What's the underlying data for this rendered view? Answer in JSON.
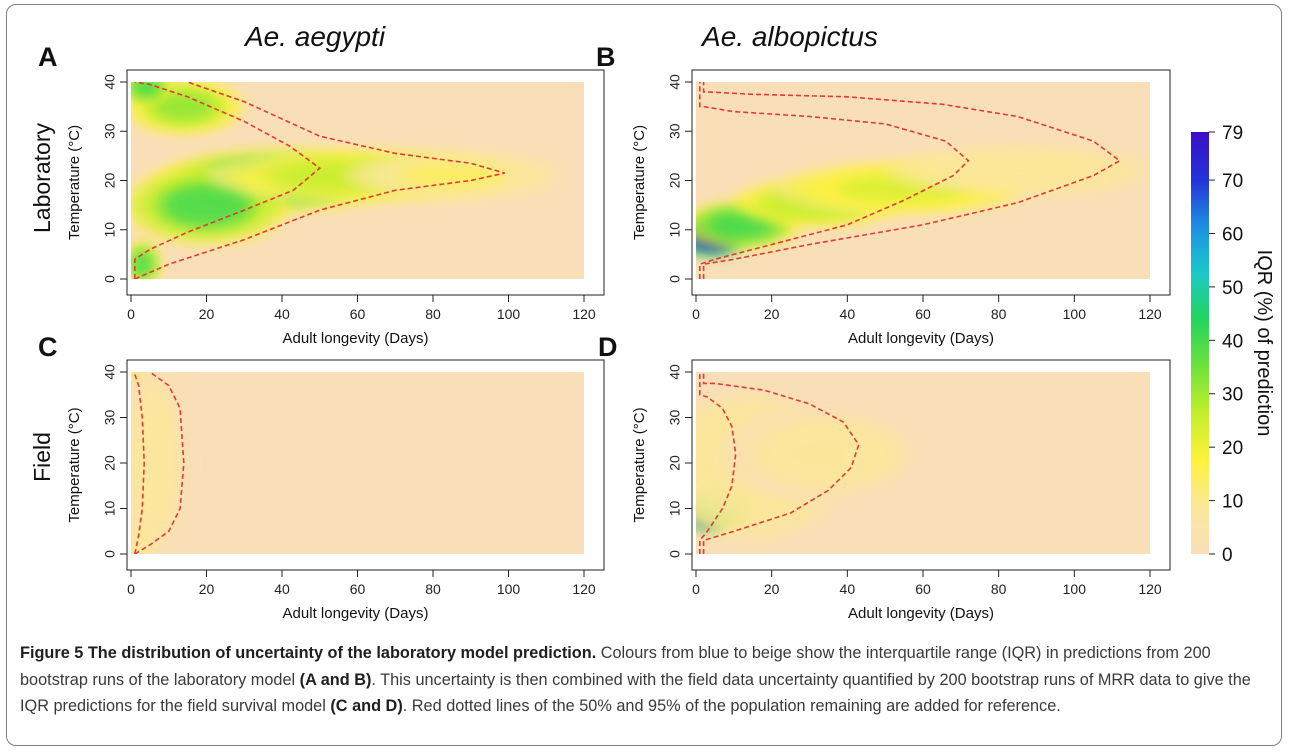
{
  "figure": {
    "column_titles": [
      "Ae. aegypti",
      "Ae. albopictus"
    ],
    "row_labels": [
      "Laboratory",
      "Field"
    ],
    "colorbar": {
      "label": "IQR (%) of prediction",
      "min": 0,
      "max": 79,
      "ticks": [
        79,
        70,
        60,
        50,
        40,
        30,
        20,
        10,
        0
      ],
      "colors": [
        "#f9dfb7",
        "#fbe79a",
        "#fef23c",
        "#c3ee2c",
        "#6ee23a",
        "#23d45c",
        "#1bc8c8",
        "#1c8fe2",
        "#2530d8",
        "#3a10c8"
      ]
    },
    "caption": {
      "title": "Figure 5 The distribution of uncertainty of the laboratory model prediction.",
      "part1": " Colours from blue to beige show the interquartile range (IQR) in predictions from 200 bootstrap runs of the laboratory model ",
      "ref1": "(A and B)",
      "part2": ". This uncertainty is then combined with the field data uncertainty quantified by 200 bootstrap runs of MRR data to give the IQR predictions for the field survival model ",
      "ref2": "(C and D)",
      "part3": ". Red dotted lines of the 50% and 95% of the population remaining are added for reference."
    }
  },
  "chart_data": [
    {
      "type": "heatmap",
      "panel": "A",
      "xlabel": "Adult longevity (Days)",
      "ylabel": "Temperature (°C)",
      "xlim": [
        0,
        120
      ],
      "ylim": [
        0,
        40
      ],
      "xticks": [
        0,
        20,
        40,
        60,
        80,
        100,
        120
      ],
      "yticks": [
        0,
        10,
        20,
        30,
        40
      ],
      "hotspots": [
        {
          "x": 38,
          "y": 20,
          "sx": 20,
          "sy": 4,
          "value": 44
        },
        {
          "x": 20,
          "y": 15,
          "sx": 14,
          "sy": 5,
          "value": 40
        },
        {
          "x": 60,
          "y": 21,
          "sx": 25,
          "sy": 3.5,
          "value": 26
        },
        {
          "x": 14,
          "y": 35,
          "sx": 10,
          "sy": 3.5,
          "value": 32
        },
        {
          "x": 4,
          "y": 39,
          "sx": 4,
          "sy": 2,
          "value": 42
        },
        {
          "x": 3,
          "y": 3,
          "sx": 3,
          "sy": 3,
          "value": 40
        },
        {
          "x": 85,
          "y": 21,
          "sx": 18,
          "sy": 3,
          "value": 14
        }
      ],
      "contours": [
        {
          "name": "50%",
          "points": [
            [
              1,
              0
            ],
            [
              1,
              4
            ],
            [
              5,
              6
            ],
            [
              15,
              9.5
            ],
            [
              30,
              14
            ],
            [
              43,
              18
            ],
            [
              50,
              22.5
            ],
            [
              42,
              27
            ],
            [
              30,
              32
            ],
            [
              15,
              37
            ],
            [
              5,
              39.5
            ],
            [
              1,
              40
            ]
          ]
        },
        {
          "name": "95%",
          "points": [
            [
              1,
              0
            ],
            [
              10,
              3
            ],
            [
              30,
              8
            ],
            [
              50,
              14
            ],
            [
              70,
              18
            ],
            [
              90,
              20
            ],
            [
              99,
              21.5
            ],
            [
              90,
              23.5
            ],
            [
              70,
              25.5
            ],
            [
              50,
              29
            ],
            [
              30,
              36
            ],
            [
              15,
              40
            ]
          ]
        }
      ]
    },
    {
      "type": "heatmap",
      "panel": "B",
      "xlabel": "Adult longevity (Days)",
      "ylabel": "Temperature (°C)",
      "xlim": [
        0,
        120
      ],
      "ylim": [
        0,
        40
      ],
      "xticks": [
        0,
        20,
        40,
        60,
        80,
        100,
        120
      ],
      "yticks": [
        0,
        10,
        20,
        30,
        40
      ],
      "hotspots": [
        {
          "x": 4,
          "y": 8.5,
          "sx": 6,
          "sy": 2.5,
          "value": 79
        },
        {
          "x": 12,
          "y": 11,
          "sx": 10,
          "sy": 3,
          "value": 45
        },
        {
          "x": 32,
          "y": 15.5,
          "sx": 14,
          "sy": 3,
          "value": 30
        },
        {
          "x": 55,
          "y": 18.5,
          "sx": 22,
          "sy": 3.5,
          "value": 22
        },
        {
          "x": 85,
          "y": 22,
          "sx": 22,
          "sy": 3,
          "value": 12
        }
      ],
      "contours": [
        {
          "name": "50%",
          "points": [
            [
              1,
              0
            ],
            [
              1,
              3
            ],
            [
              5,
              4
            ],
            [
              20,
              7
            ],
            [
              40,
              11
            ],
            [
              55,
              16
            ],
            [
              68,
              21
            ],
            [
              72,
              24
            ],
            [
              66,
              28
            ],
            [
              50,
              31.5
            ],
            [
              30,
              33
            ],
            [
              10,
              34
            ],
            [
              2,
              35
            ],
            [
              1,
              35
            ],
            [
              1,
              40
            ]
          ]
        },
        {
          "name": "95%",
          "points": [
            [
              2,
              0
            ],
            [
              2,
              3
            ],
            [
              10,
              4
            ],
            [
              30,
              7
            ],
            [
              60,
              11
            ],
            [
              85,
              15.5
            ],
            [
              105,
              21
            ],
            [
              112,
              24
            ],
            [
              105,
              28
            ],
            [
              85,
              33
            ],
            [
              65,
              35.5
            ],
            [
              40,
              37
            ],
            [
              15,
              37.5
            ],
            [
              3,
              38
            ],
            [
              2,
              38
            ],
            [
              2,
              40
            ]
          ]
        }
      ]
    },
    {
      "type": "heatmap",
      "panel": "C",
      "xlabel": "Adult longevity (Days)",
      "ylabel": "Temperature (°C)",
      "xlim": [
        0,
        120
      ],
      "ylim": [
        0,
        40
      ],
      "xticks": [
        0,
        20,
        40,
        60,
        80,
        100,
        120
      ],
      "yticks": [
        0,
        10,
        20,
        30,
        40
      ],
      "hotspots": [
        {
          "x": 2,
          "y": 39.5,
          "sx": 1.5,
          "sy": 1.2,
          "value": 22
        },
        {
          "x": 6,
          "y": 20,
          "sx": 6,
          "sy": 16,
          "value": 6
        },
        {
          "x": 2,
          "y": 2,
          "sx": 2,
          "sy": 3,
          "value": 10
        }
      ],
      "contours": [
        {
          "name": "50%",
          "points": [
            [
              1,
              0
            ],
            [
              2,
              4
            ],
            [
              3,
              10
            ],
            [
              3.5,
              20
            ],
            [
              3,
              30
            ],
            [
              2,
              37
            ],
            [
              1,
              39.5
            ],
            [
              1,
              40
            ]
          ]
        },
        {
          "name": "95%",
          "points": [
            [
              1,
              0
            ],
            [
              5,
              2
            ],
            [
              10,
              5
            ],
            [
              13,
              10
            ],
            [
              14,
              20
            ],
            [
              13,
              32
            ],
            [
              10,
              37
            ],
            [
              5,
              40
            ]
          ]
        }
      ]
    },
    {
      "type": "heatmap",
      "panel": "D",
      "xlabel": "Adult longevity (Days)",
      "ylabel": "Temperature (°C)",
      "xlim": [
        0,
        120
      ],
      "ylim": [
        0,
        40
      ],
      "xticks": [
        0,
        20,
        40,
        60,
        80,
        100,
        120
      ],
      "yticks": [
        0,
        10,
        20,
        30,
        40
      ],
      "hotspots": [
        {
          "x": 3,
          "y": 9,
          "sx": 4,
          "sy": 2.5,
          "value": 79
        },
        {
          "x": 7,
          "y": 11,
          "sx": 6,
          "sy": 3,
          "value": 42
        },
        {
          "x": 14,
          "y": 19,
          "sx": 16,
          "sy": 10,
          "value": 12
        },
        {
          "x": 35,
          "y": 22,
          "sx": 18,
          "sy": 7,
          "value": 7
        }
      ],
      "contours": [
        {
          "name": "50%",
          "points": [
            [
              1,
              0
            ],
            [
              1,
              3
            ],
            [
              3,
              5
            ],
            [
              7,
              10
            ],
            [
              9.5,
              15
            ],
            [
              10.5,
              22
            ],
            [
              9.5,
              28
            ],
            [
              7,
              32
            ],
            [
              3,
              34.5
            ],
            [
              1,
              35
            ],
            [
              1,
              40
            ]
          ]
        },
        {
          "name": "95%",
          "points": [
            [
              2,
              0
            ],
            [
              2,
              3
            ],
            [
              10,
              5
            ],
            [
              25,
              9
            ],
            [
              35,
              14
            ],
            [
              41,
              19
            ],
            [
              43,
              24
            ],
            [
              39,
              29
            ],
            [
              30,
              33
            ],
            [
              18,
              36
            ],
            [
              5,
              37.5
            ],
            [
              2,
              37.5
            ],
            [
              2,
              40
            ]
          ]
        }
      ]
    }
  ]
}
